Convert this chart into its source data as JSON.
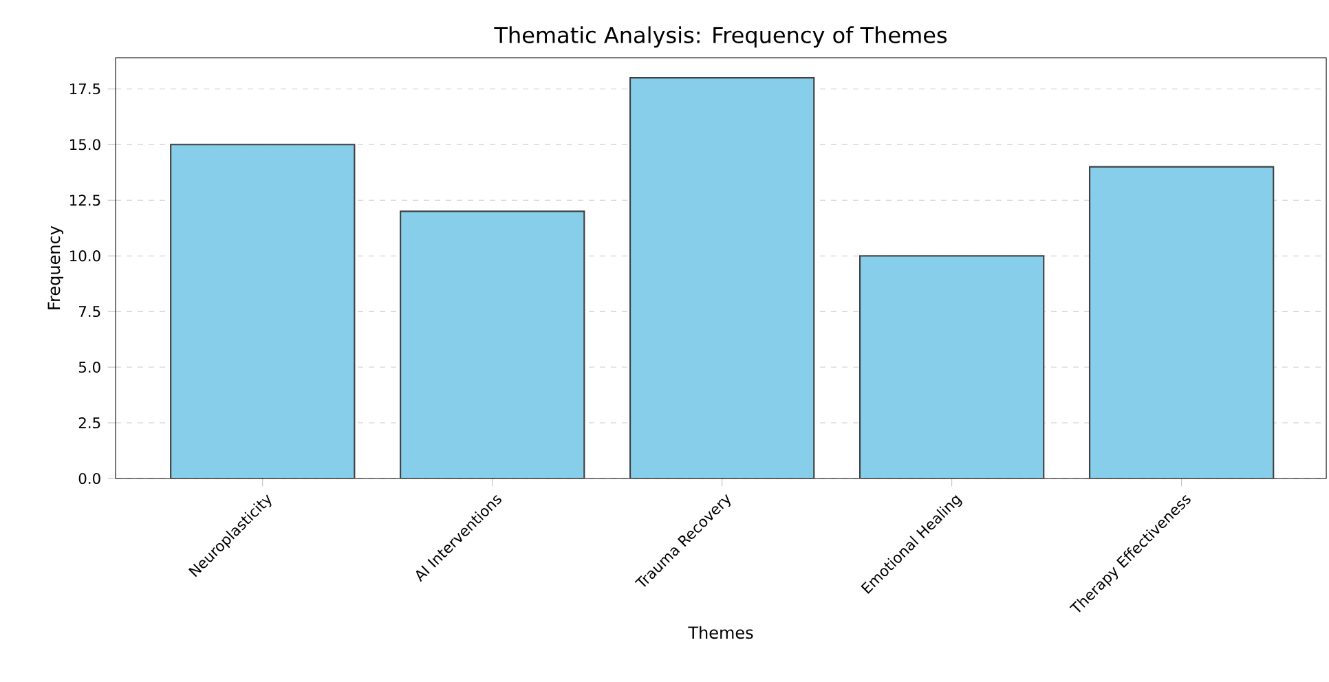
{
  "chart_data": {
    "type": "bar",
    "title": "Thematic Analysis: Frequency of Themes",
    "xlabel": "Themes",
    "ylabel": "Frequency",
    "categories": [
      "Neuroplasticity",
      "AI Interventions",
      "Trauma Recovery",
      "Emotional Healing",
      "Therapy Effectiveness"
    ],
    "values": [
      15,
      12,
      18,
      10,
      14
    ],
    "color": "#87ceeb",
    "ylim": [
      0,
      18.9
    ],
    "yticks": [
      {
        "value": 0,
        "label": "0.0"
      },
      {
        "value": 2.5,
        "label": "2.5"
      },
      {
        "value": 5,
        "label": "5.0"
      },
      {
        "value": 7.5,
        "label": "7.5"
      },
      {
        "value": 10,
        "label": "10.0"
      },
      {
        "value": 12.5,
        "label": "12.5"
      },
      {
        "value": 15,
        "label": "15.0"
      },
      {
        "value": 17.5,
        "label": "17.5"
      }
    ],
    "grid": "y"
  }
}
